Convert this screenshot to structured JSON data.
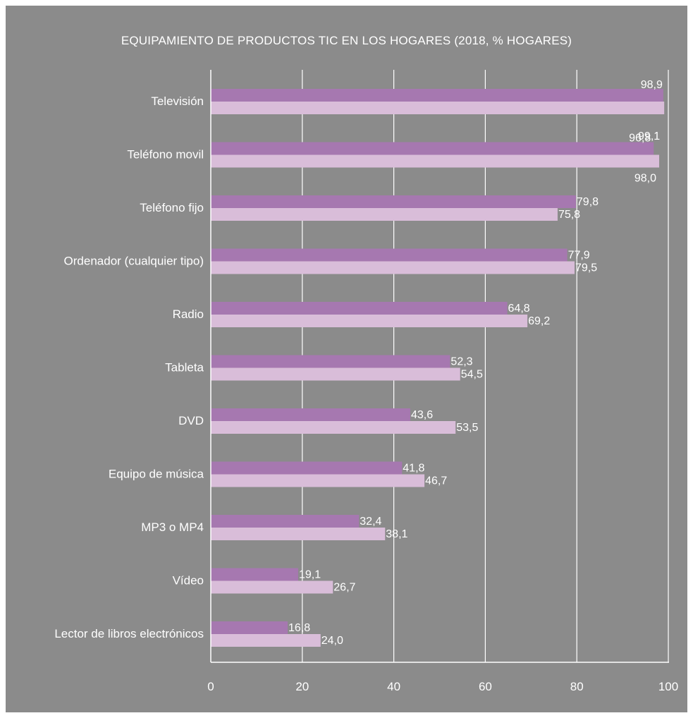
{
  "chart_data": {
    "type": "bar",
    "orientation": "horizontal",
    "title": "EQUIPAMIENTO DE PRODUCTOS TIC EN LOS HOGARES (2018, % HOGARES)",
    "categories": [
      "Televisión",
      "Teléfono movil",
      "Teléfono fijo",
      "Ordenador (cualquier tipo)",
      "Radio",
      "Tableta",
      "DVD",
      "Equipo de música",
      "MP3 o MP4",
      "Vídeo",
      "Lector de libros electrónicos"
    ],
    "series": [
      {
        "values": [
          98.9,
          96.8,
          79.8,
          77.9,
          64.8,
          52.3,
          43.6,
          41.8,
          32.4,
          19.1,
          16.8
        ]
      },
      {
        "values": [
          99.1,
          98.0,
          75.8,
          79.5,
          69.2,
          54.5,
          53.5,
          46.7,
          38.1,
          26.7,
          24.0
        ]
      }
    ],
    "value_labels": [
      [
        "98,9",
        "96,8",
        "79,8",
        "77,9",
        "64,8",
        "52,3",
        "43,6",
        "41,8",
        "32,4",
        "19,1",
        "16,8"
      ],
      [
        "99,1",
        "98,0",
        "75,8",
        "79,5",
        "69,2",
        "54,5",
        "53,5",
        "46,7",
        "38,1",
        "26,7",
        "24,0"
      ]
    ],
    "xlim": [
      0,
      100
    ],
    "xticks": [
      0,
      20,
      40,
      60,
      80,
      100
    ],
    "xtick_labels": [
      "0",
      "20",
      "40",
      "60",
      "80",
      "100"
    ],
    "grid": "vertical",
    "legend": "none",
    "colors": {
      "background": "#8b8b8b",
      "series_1": "#a678b0",
      "series_2": "#d9bdd9",
      "text": "#ffffff",
      "grid": "#ffffff"
    }
  }
}
